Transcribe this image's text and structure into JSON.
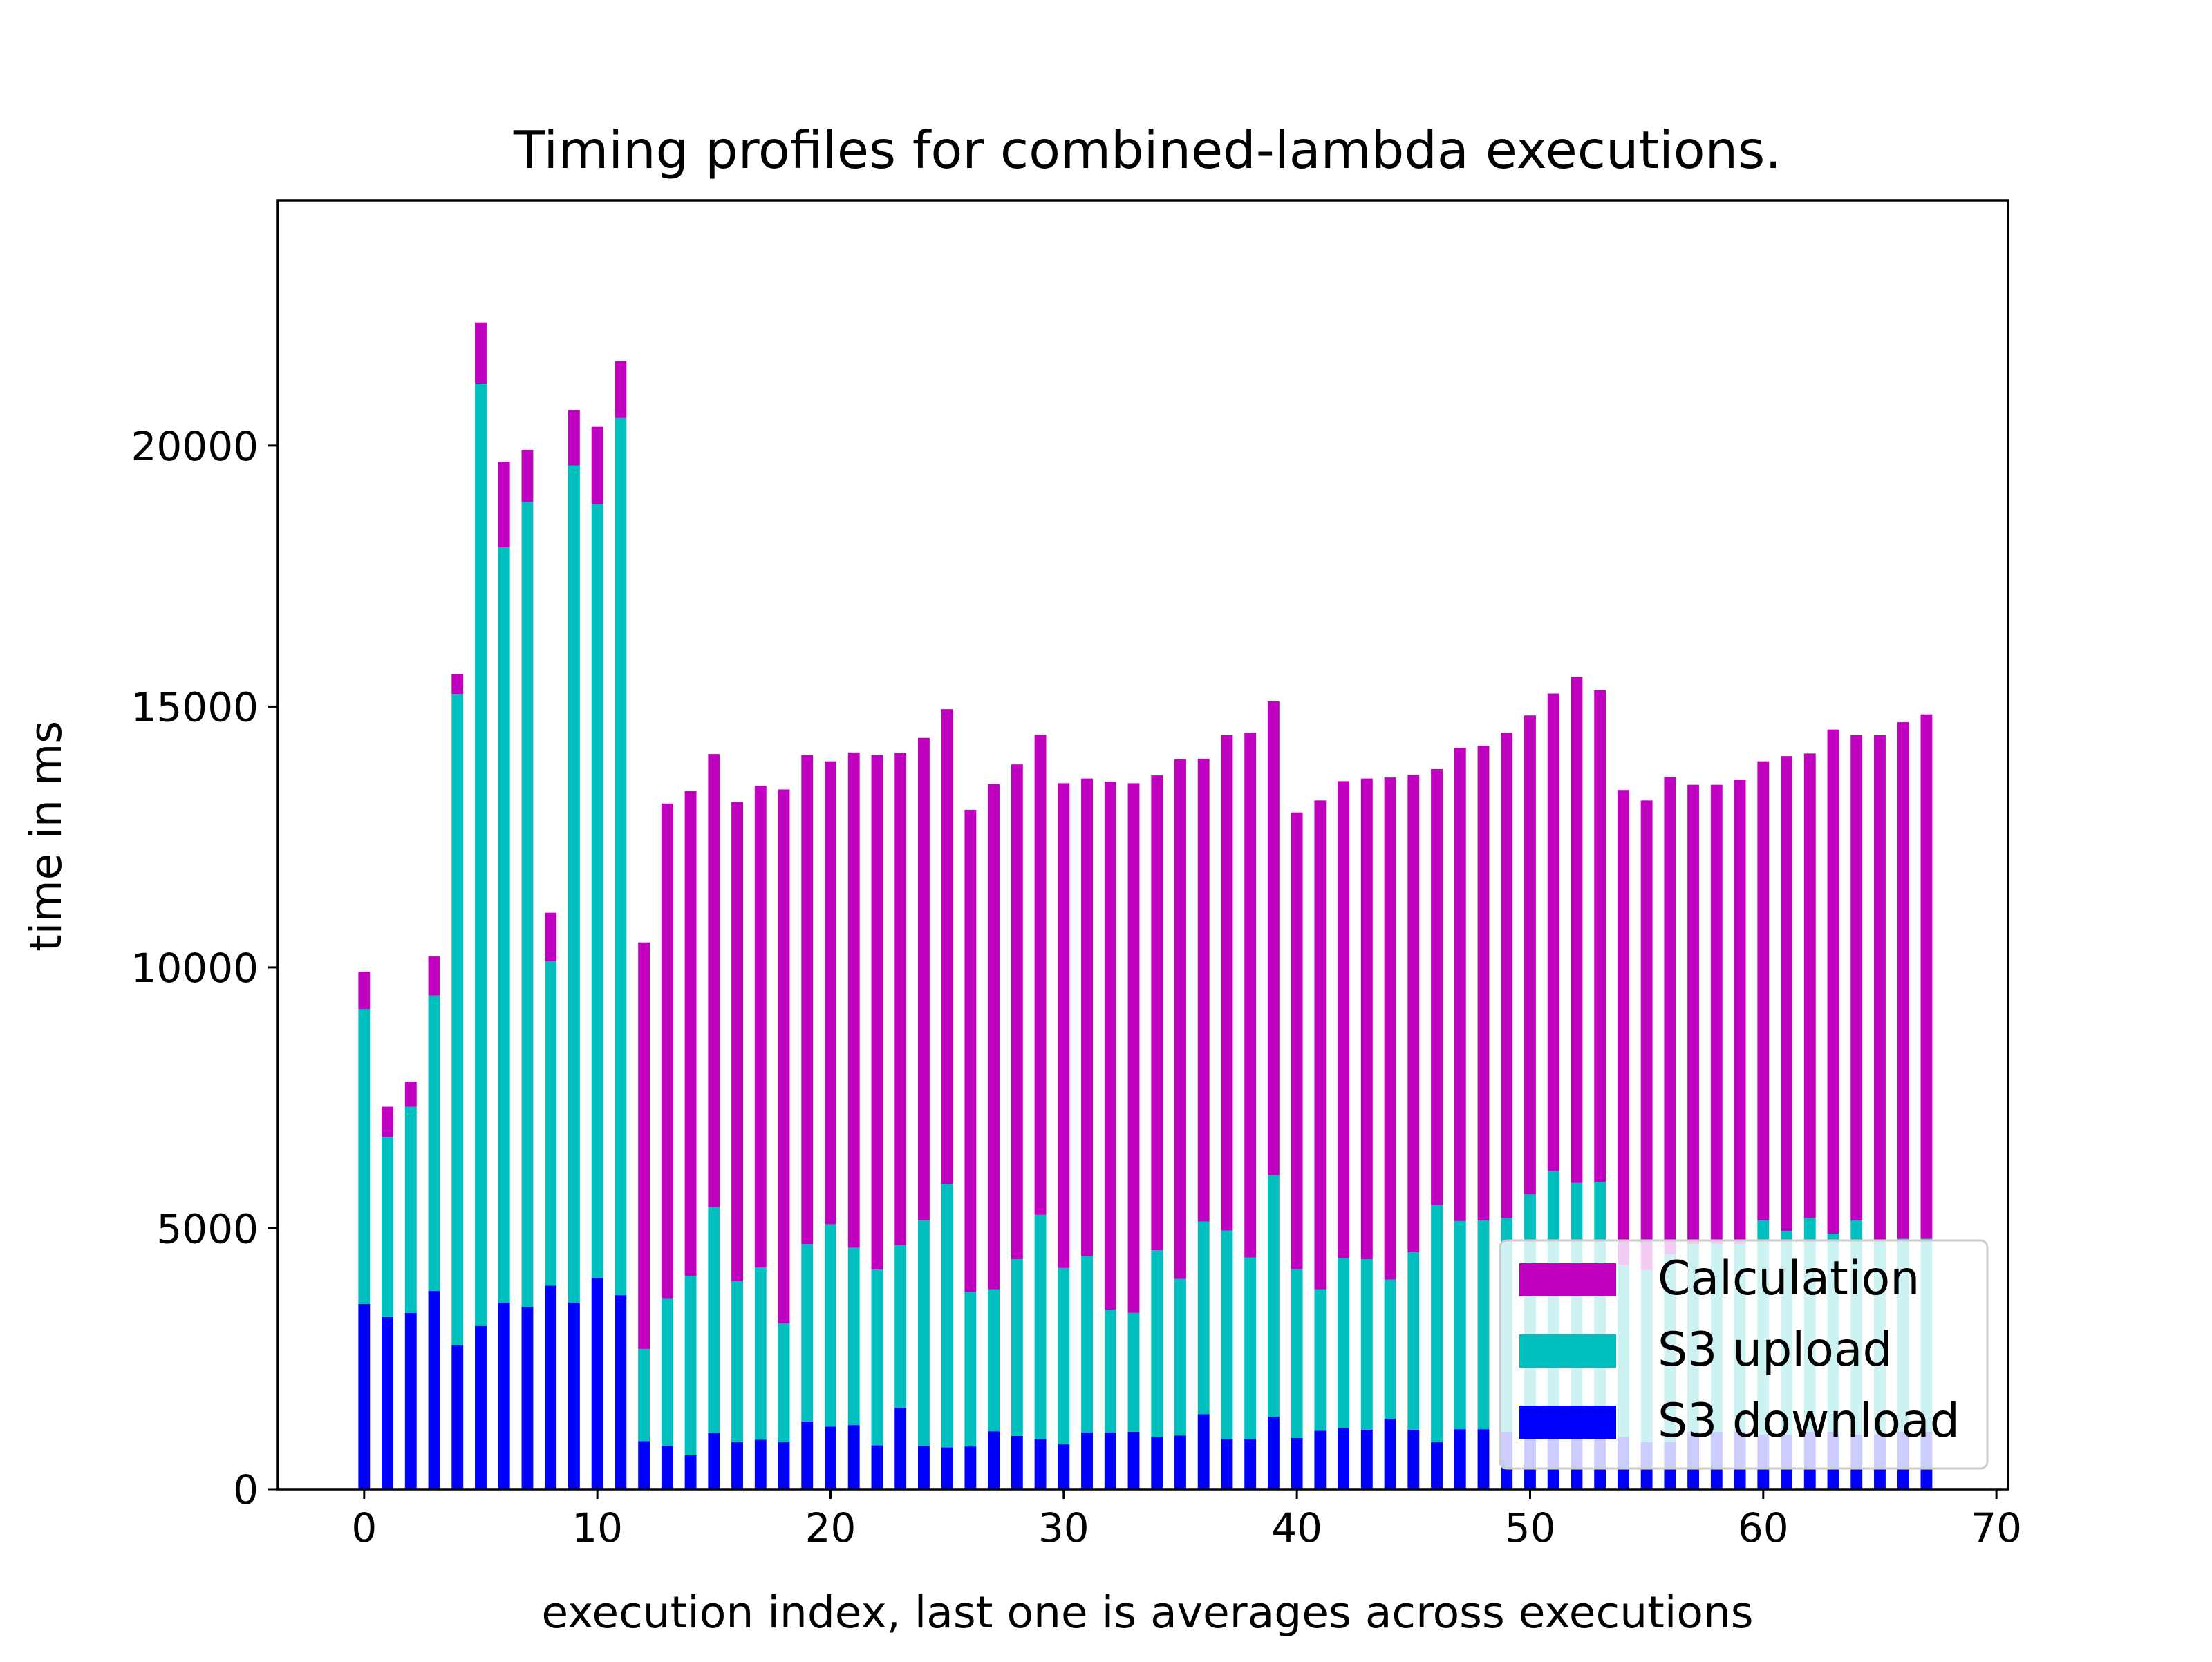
{
  "chart_data": {
    "type": "bar",
    "stacked": true,
    "title": "Timing profiles for combined-lambda executions.",
    "xlabel": "execution index, last one is averages across executions",
    "ylabel": "time in ms",
    "xlim": [
      -3.7,
      70.5
    ],
    "ylim": [
      0,
      24700
    ],
    "x_ticks": [
      0,
      10,
      20,
      30,
      40,
      50,
      60,
      70
    ],
    "x_tick_labels": [
      "0",
      "10",
      "20",
      "30",
      "40",
      "50",
      "60",
      "70"
    ],
    "y_ticks": [
      0,
      5000,
      10000,
      15000,
      20000
    ],
    "y_tick_labels": [
      "0",
      "5000",
      "10000",
      "15000",
      "20000"
    ],
    "legend_position": "lower-right",
    "x": [
      0,
      1,
      2,
      3,
      4,
      5,
      6,
      7,
      8,
      9,
      10,
      11,
      12,
      13,
      14,
      15,
      16,
      17,
      18,
      19,
      20,
      21,
      22,
      23,
      24,
      25,
      26,
      27,
      28,
      29,
      30,
      31,
      32,
      33,
      34,
      35,
      36,
      37,
      38,
      39,
      40,
      41,
      42,
      43,
      44,
      45,
      46,
      47,
      48,
      49,
      50,
      51,
      52,
      53,
      54,
      55,
      56,
      57,
      58,
      59,
      60,
      61,
      62,
      63,
      64,
      65,
      66,
      67
    ],
    "series": [
      {
        "name": "S3 download",
        "color": "#0000ff",
        "values": [
          3550,
          3300,
          3380,
          3800,
          2760,
          3130,
          3580,
          3490,
          3900,
          3580,
          4050,
          3720,
          920,
          830,
          650,
          1080,
          900,
          950,
          900,
          1300,
          1200,
          1230,
          840,
          1560,
          830,
          800,
          820,
          1110,
          1020,
          960,
          860,
          1090,
          1090,
          1100,
          1000,
          1030,
          1440,
          960,
          960,
          1390,
          980,
          1120,
          1170,
          1140,
          1350,
          1140,
          900,
          1150,
          1150,
          1100,
          1100,
          1100,
          1300,
          1250,
          1000,
          900,
          900,
          1100,
          1100,
          1100,
          1050,
          1050,
          1100,
          1100,
          1050,
          1050,
          1100,
          1100
        ]
      },
      {
        "name": "S3 upload",
        "color": "#00bfbf",
        "values": [
          5650,
          3450,
          3950,
          5660,
          12480,
          18060,
          14470,
          15430,
          6220,
          16040,
          14830,
          16810,
          1770,
          2830,
          3440,
          4330,
          3090,
          3300,
          2280,
          3400,
          3880,
          3400,
          3370,
          3120,
          4320,
          5050,
          2960,
          2720,
          3390,
          4300,
          3380,
          3380,
          2350,
          2280,
          3580,
          3000,
          3690,
          4000,
          3480,
          4630,
          3240,
          2710,
          3260,
          3270,
          2670,
          3400,
          4550,
          3990,
          4000,
          4100,
          4550,
          5000,
          4570,
          4640,
          3300,
          3300,
          3600,
          3600,
          3600,
          3600,
          4100,
          3900,
          4100,
          3800,
          4100,
          3700,
          3700,
          3700
        ]
      },
      {
        "name": "Calculation",
        "color": "#bf00bf",
        "values": [
          720,
          580,
          480,
          750,
          380,
          1170,
          1640,
          1000,
          930,
          1060,
          1480,
          1090,
          7790,
          9480,
          9290,
          8680,
          9180,
          9230,
          10230,
          9370,
          8870,
          9490,
          9860,
          9430,
          9250,
          9100,
          9240,
          9680,
          9480,
          9200,
          9290,
          9150,
          10120,
          10150,
          9100,
          9960,
          8870,
          9490,
          10060,
          9080,
          8750,
          9370,
          9140,
          9210,
          9620,
          9150,
          8350,
          9070,
          9100,
          9300,
          9180,
          9150,
          9700,
          9420,
          9100,
          9000,
          9150,
          8800,
          8800,
          8900,
          8800,
          9100,
          8900,
          9660,
          9300,
          9700,
          9900,
          10050
        ]
      }
    ],
    "legend": [
      "Calculation",
      "S3 upload",
      "S3 download"
    ]
  }
}
